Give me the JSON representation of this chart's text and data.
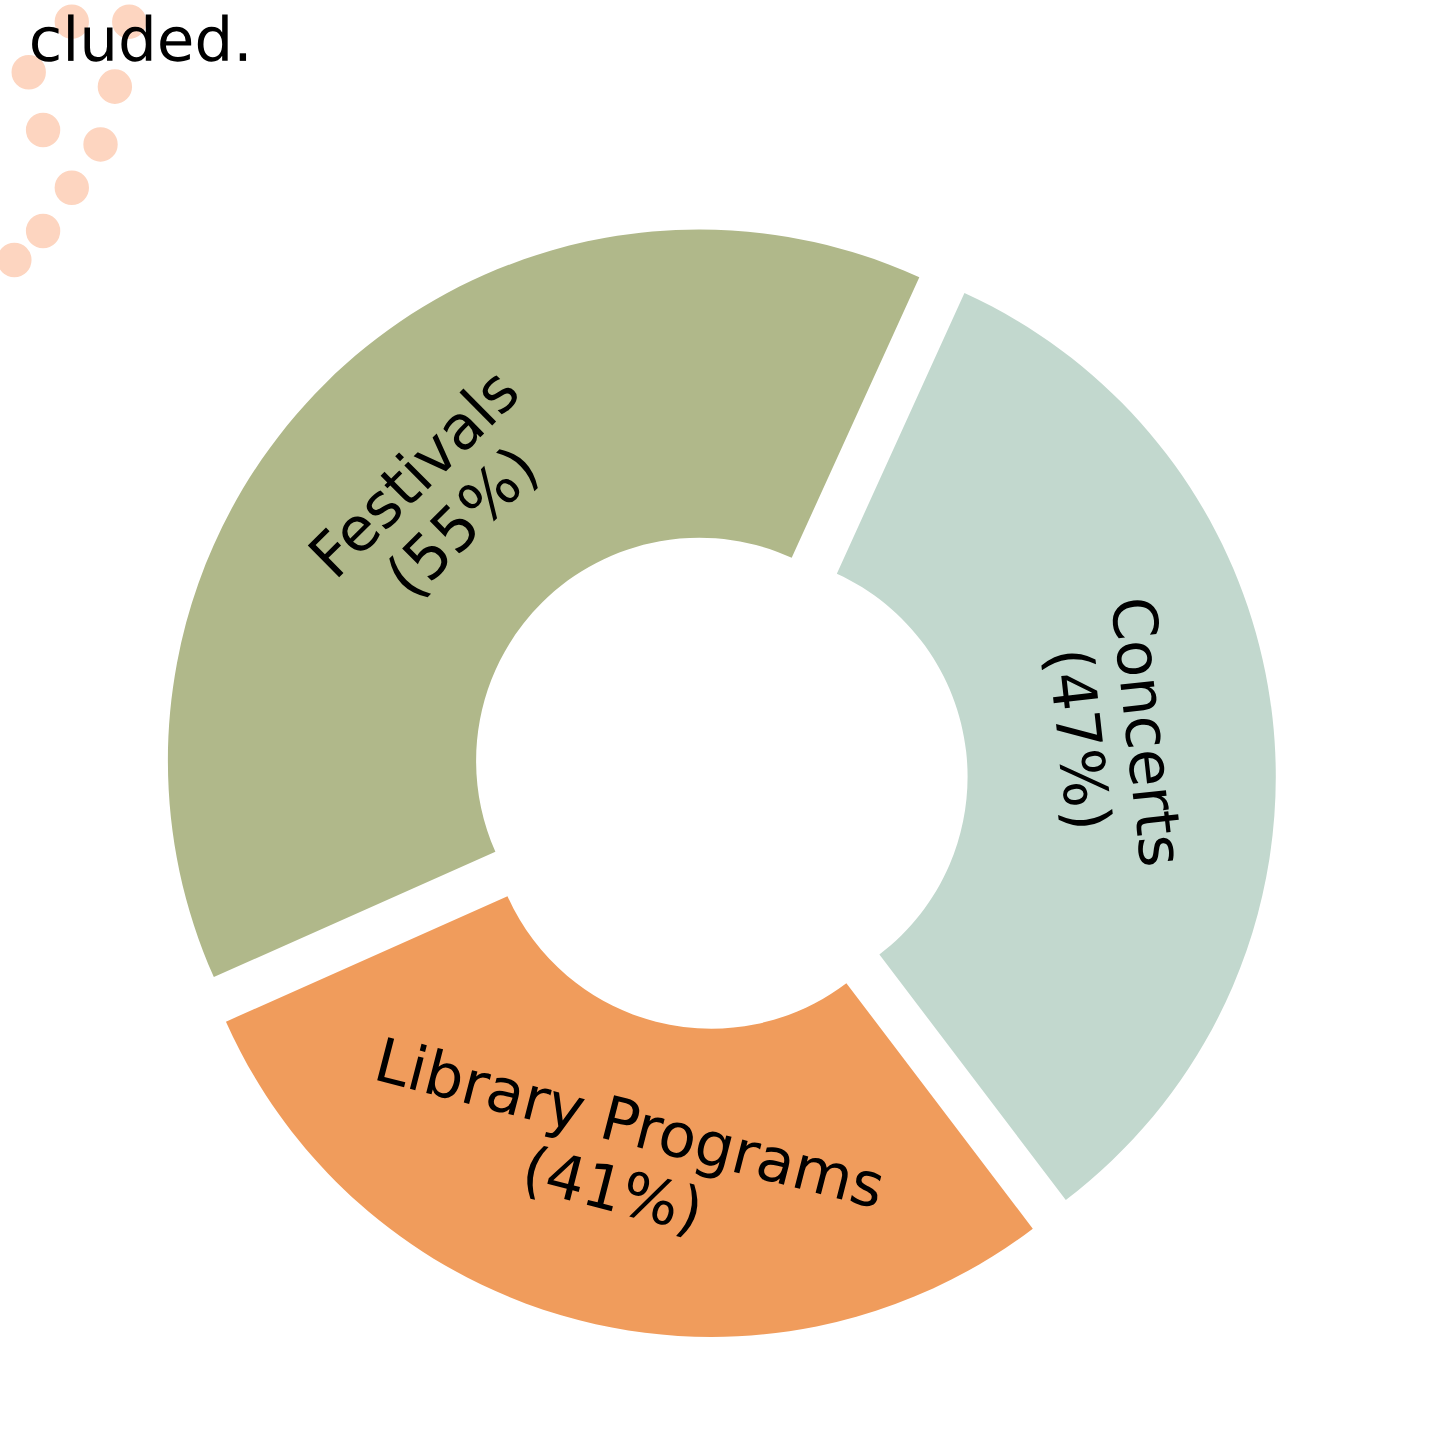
{
  "chart_data": {
    "type": "donut",
    "categories": [
      "Festivals",
      "Concerts",
      "Library Programs"
    ],
    "values": [
      55,
      47,
      41
    ],
    "value_labels": [
      "(55%)",
      "(47%)",
      "(41%)"
    ],
    "colors": [
      "#b0b88a",
      "#c2d8ce",
      "#f09c5c"
    ],
    "annotations": [
      "cluded."
    ]
  }
}
